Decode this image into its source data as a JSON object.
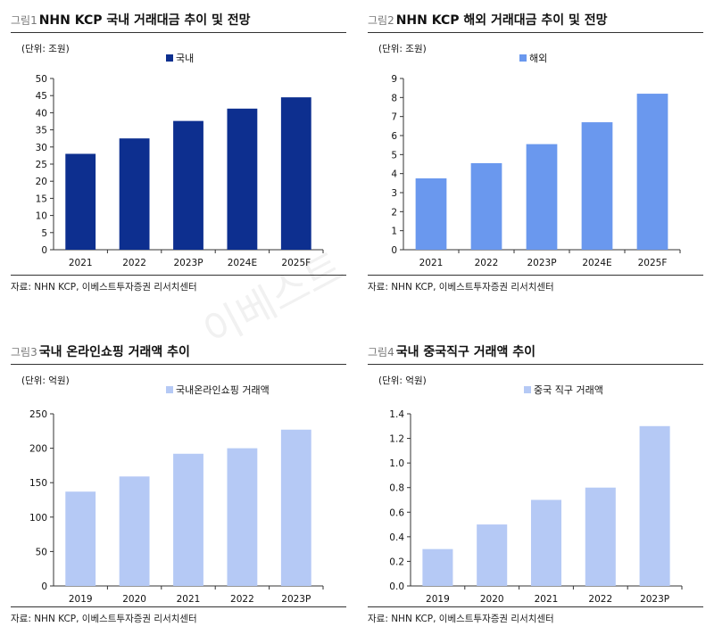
{
  "watermark": "이베스트",
  "panels": [
    {
      "fig_num": "그림1",
      "title": "NHN KCP 국내 거래대금 추이 및 전망",
      "source": "자료: NHN KCP, 이베스트투자증권 리서치센터",
      "color": "#0d2f8f",
      "chart_data": {
        "type": "bar",
        "unit_label": "(단위: 조원)",
        "series_name": "국내",
        "categories": [
          "2021",
          "2022",
          "2023P",
          "2024E",
          "2025F"
        ],
        "values": [
          28,
          32.5,
          37.6,
          41.2,
          44.5
        ],
        "ylim": [
          0,
          50
        ],
        "yticks": [
          "0",
          "5",
          "10",
          "15",
          "20",
          "25",
          "30",
          "35",
          "40",
          "45",
          "50"
        ],
        "grid": false,
        "legend": "top"
      }
    },
    {
      "fig_num": "그림2",
      "title": "NHN KCP 해외 거래대금 추이 및 전망",
      "source": "자료: NHN KCP, 이베스트투자증권 리서치센터",
      "color": "#6a98ee",
      "chart_data": {
        "type": "bar",
        "unit_label": "(단위: 조원)",
        "series_name": "해외",
        "categories": [
          "2021",
          "2022",
          "2023P",
          "2024E",
          "2025F"
        ],
        "values": [
          3.75,
          4.55,
          5.55,
          6.7,
          8.2
        ],
        "ylim": [
          0,
          9
        ],
        "yticks": [
          "0",
          "1",
          "2",
          "3",
          "4",
          "5",
          "6",
          "7",
          "8",
          "9"
        ],
        "grid": false,
        "legend": "top"
      }
    },
    {
      "fig_num": "그림3",
      "title": "국내 온라인쇼핑 거래액 추이",
      "source": "자료: NHN KCP, 이베스트투자증권 리서치센터",
      "color": "#b5c9f5",
      "chart_data": {
        "type": "bar",
        "unit_label": "(단위: 억원)",
        "series_name": "국내온라인쇼핑 거래액",
        "categories": [
          "2019",
          "2020",
          "2021",
          "2022",
          "2023P"
        ],
        "values": [
          137,
          159,
          192,
          200,
          227
        ],
        "ylim": [
          0,
          250
        ],
        "yticks": [
          "0",
          "50",
          "100",
          "150",
          "200",
          "250"
        ],
        "grid": false,
        "legend": "top"
      }
    },
    {
      "fig_num": "그림4",
      "title": "국내 중국직구 거래액 추이",
      "source": "자료: NHN KCP, 이베스트투자증권 리서치센터",
      "color": "#b5c9f5",
      "chart_data": {
        "type": "bar",
        "unit_label": "(단위: 억원)",
        "series_name": "중국 직구 거래액",
        "categories": [
          "2019",
          "2020",
          "2021",
          "2022",
          "2023P"
        ],
        "values": [
          0.3,
          0.5,
          0.7,
          0.8,
          1.3
        ],
        "ylim": [
          0,
          1.4
        ],
        "yticks": [
          "0.0",
          "0.2",
          "0.4",
          "0.6",
          "0.8",
          "1.0",
          "1.2",
          "1.4"
        ],
        "grid": false,
        "legend": "top"
      }
    }
  ]
}
